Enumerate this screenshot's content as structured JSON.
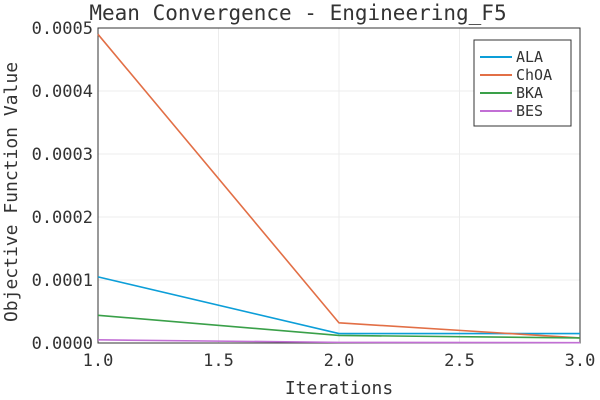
{
  "chart_data": {
    "type": "line",
    "title": "Mean Convergence - Engineering_F5",
    "xlabel": "Iterations",
    "ylabel": "Objective Function Value",
    "x": [
      1.0,
      2.0,
      3.0
    ],
    "xlim": [
      1.0,
      3.0
    ],
    "ylim": [
      0.0,
      0.0005
    ],
    "xticks": [
      1.0,
      1.5,
      2.0,
      2.5,
      3.0
    ],
    "xtick_labels": [
      "1.0",
      "1.5",
      "2.0",
      "2.5",
      "3.0"
    ],
    "yticks": [
      0.0,
      0.0001,
      0.0002,
      0.0003,
      0.0004,
      0.0005
    ],
    "ytick_labels": [
      "0.0000",
      "0.0001",
      "0.0002",
      "0.0003",
      "0.0004",
      "0.0005"
    ],
    "grid": true,
    "legend_position": "top-right",
    "series": [
      {
        "name": "ALA",
        "color": "#0c9ed8",
        "values": [
          0.000105,
          1.5e-05,
          1.5e-05
        ]
      },
      {
        "name": "ChOA",
        "color": "#e26f46",
        "values": [
          0.00049,
          3.2e-05,
          8e-06
        ]
      },
      {
        "name": "BKA",
        "color": "#3aa049",
        "values": [
          4.4e-05,
          1.2e-05,
          8e-06
        ]
      },
      {
        "name": "BES",
        "color": "#c26fd5",
        "values": [
          5e-06,
          1e-06,
          5e-07
        ]
      }
    ]
  }
}
